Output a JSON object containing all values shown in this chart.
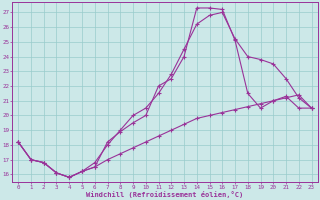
{
  "xlabel": "Windchill (Refroidissement éolien,°C)",
  "bg_color": "#cce8e8",
  "line_color": "#993399",
  "grid_color": "#99cccc",
  "xlim": [
    -0.5,
    23.5
  ],
  "ylim": [
    15.5,
    27.7
  ],
  "yticks": [
    16,
    17,
    18,
    19,
    20,
    21,
    22,
    23,
    24,
    25,
    26,
    27
  ],
  "xticks": [
    0,
    1,
    2,
    3,
    4,
    5,
    6,
    7,
    8,
    9,
    10,
    11,
    12,
    13,
    14,
    15,
    16,
    17,
    18,
    19,
    20,
    21,
    22,
    23
  ],
  "line1_x": [
    0,
    1,
    2,
    3,
    4,
    5,
    6,
    7,
    8,
    9,
    10,
    11,
    12,
    13,
    14,
    15,
    16,
    17,
    18,
    19,
    20,
    21,
    22,
    23
  ],
  "line1_y": [
    18.2,
    17.0,
    16.8,
    16.1,
    15.8,
    16.2,
    16.5,
    18.2,
    18.9,
    19.5,
    20.0,
    22.0,
    22.5,
    24.0,
    27.3,
    27.3,
    27.2,
    25.1,
    21.5,
    20.5,
    21.0,
    21.3,
    20.5,
    20.5
  ],
  "line2_x": [
    0,
    1,
    2,
    3,
    4,
    5,
    6,
    7,
    8,
    9,
    10,
    11,
    12,
    13,
    14,
    15,
    16,
    17,
    18,
    19,
    20,
    21,
    22,
    23
  ],
  "line2_y": [
    18.2,
    17.0,
    16.8,
    16.1,
    15.8,
    16.2,
    16.8,
    18.0,
    19.0,
    20.0,
    20.5,
    21.5,
    22.8,
    24.5,
    26.2,
    26.8,
    27.0,
    25.2,
    24.0,
    23.8,
    23.5,
    22.5,
    21.2,
    20.5
  ],
  "line3_x": [
    0,
    1,
    2,
    3,
    4,
    5,
    6,
    7,
    8,
    9,
    10,
    11,
    12,
    13,
    14,
    15,
    16,
    17,
    18,
    19,
    20,
    21,
    22,
    23
  ],
  "line3_y": [
    18.2,
    17.0,
    16.8,
    16.1,
    15.8,
    16.2,
    16.5,
    17.0,
    17.4,
    17.8,
    18.2,
    18.6,
    19.0,
    19.4,
    19.8,
    20.0,
    20.2,
    20.4,
    20.6,
    20.8,
    21.0,
    21.2,
    21.4,
    20.5
  ],
  "lw": 0.8,
  "ms": 3.0
}
